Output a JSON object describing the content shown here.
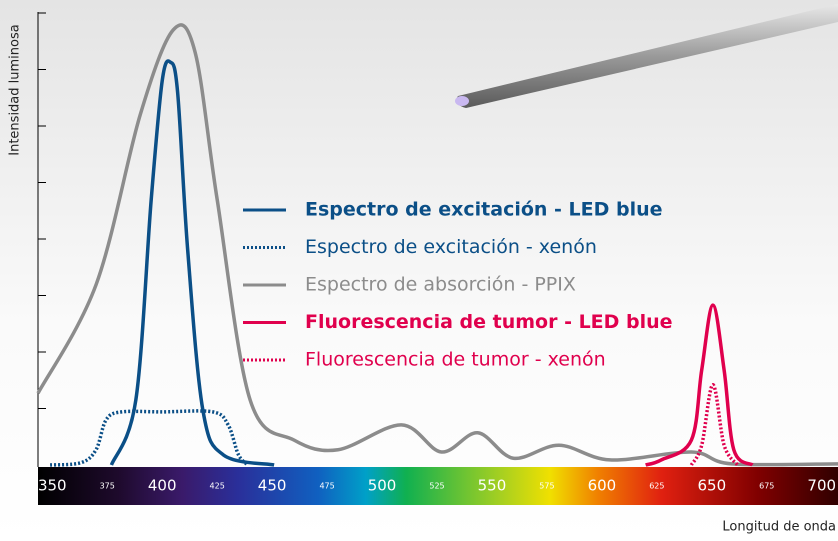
{
  "chart_data": {
    "type": "line",
    "y_label": "Intensidad luminosa",
    "x_label": "Longitud de onda",
    "xlim": [
      343.5,
      707.4
    ],
    "xticks": [
      350,
      375,
      400,
      425,
      450,
      475,
      500,
      525,
      550,
      575,
      600,
      625,
      650,
      675,
      700
    ],
    "ylim": [
      0,
      8
    ],
    "yticks": [
      1,
      2,
      3,
      4,
      5,
      6,
      7,
      8
    ],
    "series": [
      {
        "name": "Espectro de excitación - LED blue",
        "color": "#0b4f87",
        "style": "solid",
        "bold": true,
        "x": [
          376.9,
          388,
          395,
          400,
          403.7,
          407,
          411.6,
          418.5,
          427.8,
          450.9
        ],
        "values": [
          0,
          1.15,
          4.7,
          6.8,
          7.13,
          6.6,
          3.8,
          0.97,
          0.18,
          0
        ]
      },
      {
        "name": "Espectro de excitación - xenón",
        "color": "#0b4f87",
        "style": "dotted",
        "bold": false,
        "x": [
          349,
          363,
          369.9,
          374.5,
          381.5,
          400,
          423,
          430,
          434.7,
          439
        ],
        "values": [
          0,
          0.04,
          0.27,
          0.8,
          0.94,
          0.94,
          0.94,
          0.71,
          0.18,
          0
        ]
      },
      {
        "name": "Espectro de absorción - PPIX",
        "color": "#8c8c8c",
        "style": "solid",
        "bold": false,
        "x": [
          343.5,
          370,
          390,
          405,
          415,
          425,
          440,
          460,
          480,
          508.8,
          527,
          543.5,
          559.7,
          580.5,
          603.7,
          640.7,
          659,
          707.4
        ],
        "values": [
          1.27,
          3.2,
          6.2,
          7.7,
          7.3,
          4.7,
          1.15,
          0.44,
          0.27,
          0.71,
          0.23,
          0.57,
          0.12,
          0.35,
          0.09,
          0.23,
          0.02,
          0.02
        ]
      },
      {
        "name": "Fluorescencia de tumor - LED blue",
        "color": "#e0004d",
        "style": "solid",
        "bold": true,
        "x": [
          619.9,
          627,
          640.7,
          645.4,
          650.5,
          655.6,
          660,
          668.5
        ],
        "values": [
          0,
          0.09,
          0.44,
          1.68,
          2.83,
          1.68,
          0.27,
          0
        ]
      },
      {
        "name": "Fluorescencia de tumor - xenón",
        "color": "#e0004d",
        "style": "dotted",
        "bold": false,
        "x": [
          640.7,
          645.4,
          650.5,
          655.6,
          661.7
        ],
        "values": [
          0,
          0.35,
          1.42,
          0.35,
          0
        ]
      }
    ]
  }
}
